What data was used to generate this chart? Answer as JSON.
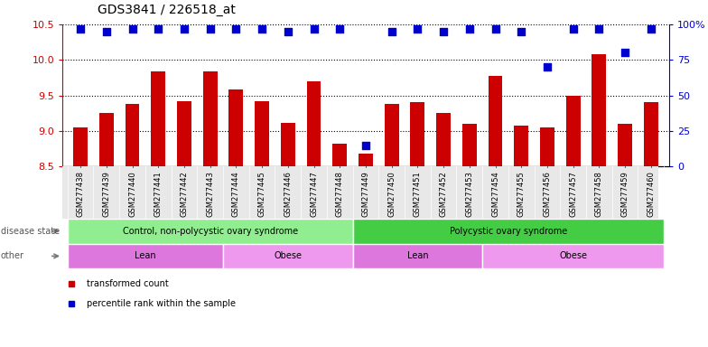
{
  "title": "GDS3841 / 226518_at",
  "samples": [
    "GSM277438",
    "GSM277439",
    "GSM277440",
    "GSM277441",
    "GSM277442",
    "GSM277443",
    "GSM277444",
    "GSM277445",
    "GSM277446",
    "GSM277447",
    "GSM277448",
    "GSM277449",
    "GSM277450",
    "GSM277451",
    "GSM277452",
    "GSM277453",
    "GSM277454",
    "GSM277455",
    "GSM277456",
    "GSM277457",
    "GSM277458",
    "GSM277459",
    "GSM277460"
  ],
  "bar_values": [
    9.05,
    9.25,
    9.38,
    9.84,
    9.42,
    9.84,
    9.58,
    9.42,
    9.12,
    9.7,
    8.82,
    8.68,
    9.38,
    9.4,
    9.25,
    9.1,
    9.78,
    9.08,
    9.05,
    9.5,
    10.08,
    9.1,
    9.4
  ],
  "percentile_values": [
    97,
    95,
    97,
    97,
    97,
    97,
    97,
    97,
    95,
    97,
    97,
    15,
    95,
    97,
    95,
    97,
    97,
    95,
    70,
    97,
    97,
    80,
    97
  ],
  "bar_color": "#cc0000",
  "dot_color": "#0000cc",
  "ylim": [
    8.5,
    10.5
  ],
  "yticks": [
    8.5,
    9.0,
    9.5,
    10.0,
    10.5
  ],
  "right_ylim": [
    0,
    100
  ],
  "right_yticks": [
    0,
    25,
    50,
    75,
    100
  ],
  "right_yticklabels": [
    "0",
    "25",
    "50",
    "75",
    "100%"
  ],
  "disease_state_groups": [
    {
      "label": "Control, non-polycystic ovary syndrome",
      "start": 0,
      "end": 10,
      "color": "#90ee90"
    },
    {
      "label": "Polycystic ovary syndrome",
      "start": 11,
      "end": 22,
      "color": "#44cc44"
    }
  ],
  "other_groups": [
    {
      "label": "Lean",
      "start": 0,
      "end": 5,
      "color": "#dd77dd"
    },
    {
      "label": "Obese",
      "start": 6,
      "end": 10,
      "color": "#ee99ee"
    },
    {
      "label": "Lean",
      "start": 11,
      "end": 15,
      "color": "#dd77dd"
    },
    {
      "label": "Obese",
      "start": 16,
      "end": 22,
      "color": "#ee99ee"
    }
  ],
  "legend_items": [
    {
      "label": "transformed count",
      "color": "#cc0000"
    },
    {
      "label": "percentile rank within the sample",
      "color": "#0000cc"
    }
  ],
  "bar_width": 0.55,
  "dot_size": 28,
  "background_color": "#ffffff",
  "tick_label_fontsize": 6,
  "title_fontsize": 10,
  "disease_label": "disease state",
  "other_label": "other",
  "annotation_label_color": "#555555",
  "arrow_color": "#777777"
}
